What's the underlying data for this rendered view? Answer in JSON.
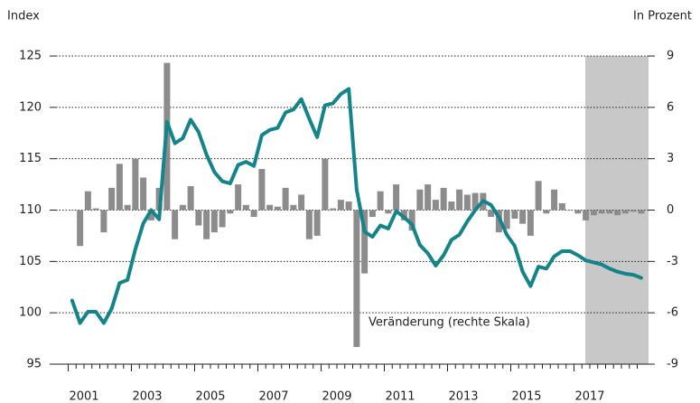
{
  "chart_data": {
    "type": "combo",
    "y_label": "Index",
    "y2_label": "In Prozent",
    "annotation": "Veränderung (rechte Skala)",
    "categories": [
      "2001",
      null,
      null,
      null,
      null,
      null,
      null,
      null,
      "2003",
      null,
      null,
      null,
      null,
      null,
      null,
      null,
      "2005",
      null,
      null,
      null,
      null,
      null,
      null,
      null,
      "2007",
      null,
      null,
      null,
      null,
      null,
      null,
      null,
      "2009",
      null,
      null,
      null,
      null,
      null,
      null,
      null,
      "2011",
      null,
      null,
      null,
      null,
      null,
      null,
      null,
      "2013",
      null,
      null,
      null,
      null,
      null,
      null,
      null,
      "2015",
      null,
      null,
      null,
      null,
      null,
      null,
      null,
      "2017",
      null,
      null,
      null,
      null,
      null,
      null,
      null,
      null
    ],
    "ylim": [
      95,
      125
    ],
    "yticks": [
      95,
      100,
      105,
      110,
      115,
      120,
      125
    ],
    "y2lim": [
      -9,
      9
    ],
    "y2ticks": [
      -9,
      -6,
      -3,
      0,
      3,
      6,
      9
    ],
    "grid": true,
    "series": [
      {
        "type": "bar",
        "axis": "y2",
        "color": "#8c8c8c",
        "values": [
          0,
          -2.1,
          1.1,
          0.1,
          -1.3,
          1.3,
          2.7,
          0.3,
          3.0,
          1.9,
          -0.6,
          1.3,
          8.6,
          -1.7,
          0.3,
          1.4,
          -0.9,
          -1.7,
          -1.3,
          -1.0,
          -0.2,
          1.5,
          0.3,
          -0.4,
          2.4,
          0.3,
          0.2,
          1.3,
          0.3,
          0.9,
          -1.7,
          -1.5,
          3.0,
          0.1,
          0.6,
          0.5,
          -8.0,
          -3.7,
          -0.4,
          1.1,
          -0.2,
          1.5,
          -0.6,
          -1.2,
          1.2,
          1.5,
          0.6,
          1.3,
          0.5,
          1.2,
          0.9,
          1.0,
          1.0,
          -0.4,
          -1.3,
          -1.1,
          -0.5,
          -0.8,
          -1.5,
          1.7,
          -0.2,
          1.2,
          0.4,
          0.0,
          -0.2,
          -0.6,
          -0.3,
          -0.2,
          -0.2,
          -0.3,
          -0.2,
          -0.1,
          -0.2
        ]
      },
      {
        "type": "line",
        "axis": "y",
        "color": "#13858a",
        "values": [
          101.2,
          99.0,
          100.1,
          100.1,
          99.0,
          100.4,
          102.9,
          103.2,
          106.2,
          108.7,
          110.0,
          109.1,
          118.6,
          116.5,
          117.0,
          118.8,
          117.6,
          115.4,
          113.7,
          112.8,
          112.6,
          114.4,
          114.7,
          114.3,
          117.3,
          117.8,
          118.0,
          119.5,
          119.8,
          120.8,
          118.9,
          117.1,
          120.2,
          120.4,
          121.3,
          121.8,
          112.0,
          107.9,
          107.4,
          108.5,
          108.2,
          109.9,
          109.3,
          108.6,
          106.6,
          105.8,
          104.6,
          105.6,
          107.1,
          107.6,
          108.9,
          110.0,
          110.9,
          110.5,
          109.3,
          107.6,
          106.5,
          104.0,
          102.6,
          104.5,
          104.3,
          105.5,
          106.0,
          106.0,
          105.6,
          105.1,
          104.9,
          104.7,
          104.3,
          104.0,
          103.8,
          103.7,
          103.4
        ]
      }
    ]
  }
}
